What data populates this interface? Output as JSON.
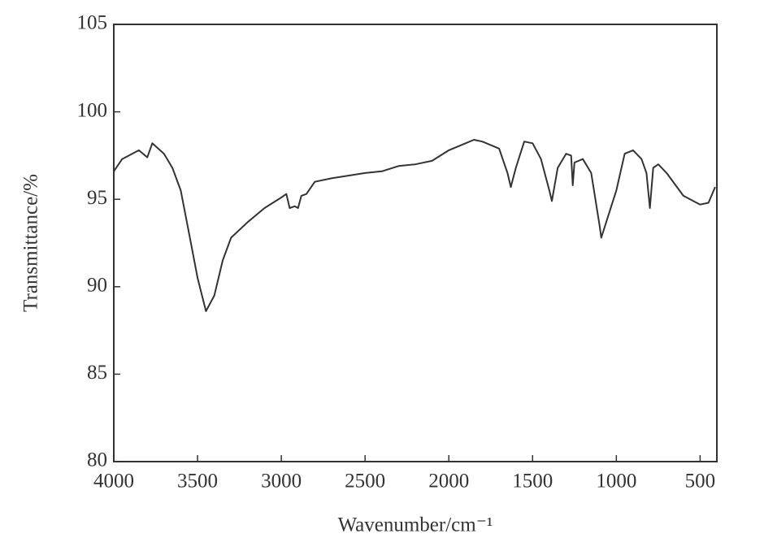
{
  "chart_data": {
    "type": "line",
    "x_label": "Wavenumber/cm⁻¹",
    "y_label": "Transmittance/%",
    "xlim": [
      4000,
      400
    ],
    "xticks": [
      4000,
      3500,
      3000,
      2500,
      2000,
      1500,
      1000,
      500
    ],
    "ylim": [
      80,
      105
    ],
    "yticks": [
      80,
      85,
      90,
      95,
      100,
      105
    ],
    "color": "#333333",
    "x": [
      4000,
      3950,
      3850,
      3800,
      3770,
      3700,
      3650,
      3600,
      3550,
      3500,
      3450,
      3400,
      3350,
      3300,
      3200,
      3100,
      3000,
      2970,
      2950,
      2920,
      2900,
      2880,
      2850,
      2800,
      2700,
      2500,
      2400,
      2300,
      2200,
      2100,
      2000,
      1900,
      1850,
      1800,
      1700,
      1650,
      1630,
      1600,
      1550,
      1500,
      1450,
      1400,
      1385,
      1350,
      1300,
      1270,
      1260,
      1250,
      1200,
      1150,
      1100,
      1090,
      1050,
      1000,
      950,
      900,
      850,
      820,
      800,
      780,
      750,
      700,
      600,
      500,
      450,
      410
    ],
    "values": [
      96.6,
      97.3,
      97.8,
      97.4,
      98.2,
      97.6,
      96.8,
      95.5,
      93,
      90.5,
      88.6,
      89.5,
      91.5,
      92.8,
      93.7,
      94.5,
      95.1,
      95.3,
      94.5,
      94.6,
      94.5,
      95.2,
      95.3,
      96,
      96.2,
      96.5,
      96.6,
      96.9,
      97.0,
      97.2,
      97.8,
      98.2,
      98.4,
      98.3,
      97.9,
      96.5,
      95.7,
      96.8,
      98.3,
      98.2,
      97.3,
      95.5,
      94.9,
      96.8,
      97.6,
      97.5,
      95.8,
      97.1,
      97.3,
      96.5,
      93.5,
      92.8,
      94,
      95.5,
      97.6,
      97.8,
      97.3,
      96.5,
      94.5,
      96.8,
      97,
      96.5,
      95.2,
      94.7,
      94.8,
      95.7
    ]
  }
}
